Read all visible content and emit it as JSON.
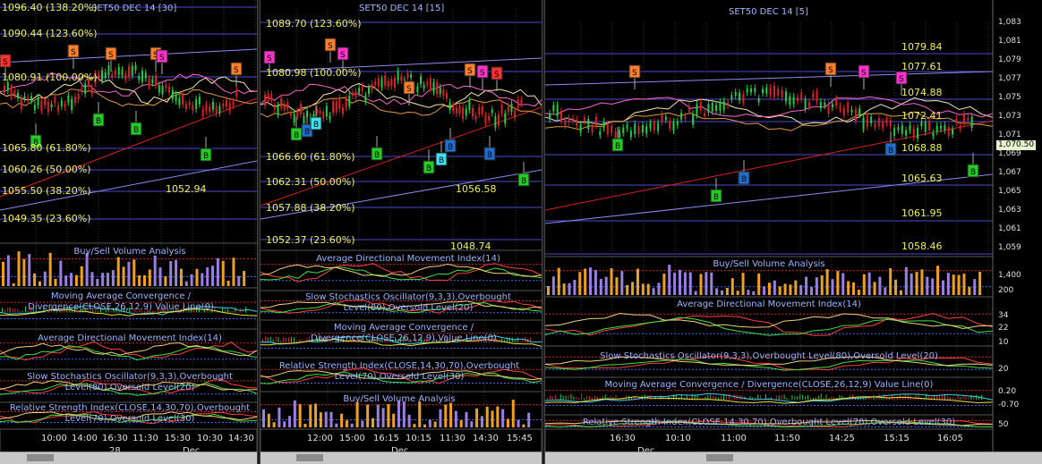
{
  "colors": {
    "bg": "#000000",
    "fib": "#f2f24a",
    "title": "#9fb7ff",
    "up_candle": "#22cc44",
    "down_candle": "#dd2020",
    "buy_marker": "#22cc22",
    "sell_marker": "#ff7f2a",
    "magenta_marker": "#ff33cc",
    "blue_marker": "#1f6fd0"
  },
  "pane1": {
    "title": "SET50 DEC 14   [30]",
    "fib_labels": [
      "1096.40 (138.20%)",
      "1090.44 (123.60%)",
      "1080.91 (100.00%)",
      "1065.80 (61.80%)",
      "1060.26 (50.00%)",
      "1055.50 (38.20%)",
      "1049.35 (23.60%)"
    ],
    "low_label": "1052.94",
    "indicators": [
      "Buy/Sell Volume Analysis",
      "Moving Average Convergence / Divergence(CLOSE,26,12,9) Value Line(0)",
      "Average Directional Movement Index(14)",
      "Slow Stochastics Oscillator(9,3,3),Overbought Level(80),Oversold Level(20)",
      "Relative Strength Index(CLOSE,14,30,70),Overbought Level(70),Oversold Level(30)"
    ],
    "time_ticks": [
      "10:00",
      "14:00",
      "16:30",
      "11:30",
      "15:30",
      "10:30",
      "14:30"
    ],
    "date_ticks": [
      "28",
      "Dec"
    ]
  },
  "pane2": {
    "title": "SET50 DEC 14   [15]",
    "fib_labels": [
      "1089.70 (123.60%)",
      "1080.98 (100.00%)",
      "1066.60 (61.80%)",
      "1062.31 (50.00%)",
      "1057.88 (38.20%)",
      "1052.37 (23.60%)"
    ],
    "low_label": "1048.74",
    "overlap_label": "1056.58",
    "indicators": [
      "Average Directional Movement Index(14)",
      "Slow Stochastics Oscillator(9,3,3),Overbought Level(80),Oversold Level(20)",
      "Moving Average Convergence / Divergence(CLOSE,26,12,9),Value Line(0)",
      "Relative Strength Index(CLOSE,14,30,70),Overbought Level(70),Oversold Level(30)",
      "Buy/Sell Volume Analysis"
    ],
    "time_ticks": [
      "12:00",
      "15:00",
      "16:15",
      "10:15",
      "11:30",
      "14:30",
      "15:45"
    ],
    "date_ticks": [
      "Dec"
    ]
  },
  "pane3": {
    "title": "SET50 DEC 14   [5]",
    "price_labels": [
      "1079.84",
      "1077.61",
      "1074.88",
      "1072.41",
      "1068.88",
      "1065.63",
      "1061.95",
      "1058.46"
    ],
    "last_price": "1,070.50",
    "y_ticks": [
      "1,083",
      "1,081",
      "1,079",
      "1,077",
      "1,075",
      "1,073",
      "1,071",
      "1,069",
      "1,067",
      "1,065",
      "1,063",
      "1,061",
      "1,059"
    ],
    "indicators": [
      "Buy/Sell Volume Analysis",
      "Average Directional Movement Index(14)",
      "Slow Stochastics Oscillator(9,3,3),Overbought Level(80),Oversold Level(20)",
      "Moving Average Convergence / Divergence(CLOSE,26,12,9) Value Line(0)",
      "Relative Strength Index(CLOSE,14,30,70),Overbought Level(70),Oversold Level(30)"
    ],
    "ind_ticks": {
      "volume": [
        "1,400",
        "200"
      ],
      "adx": [
        "34",
        "22",
        "10"
      ],
      "stoch": [
        "20"
      ],
      "macd": [
        "0.20",
        "-0.70"
      ],
      "rsi": [
        "50"
      ]
    },
    "time_ticks": [
      "16:30",
      "10:10",
      "11:00",
      "11:50",
      "14:25",
      "15:15",
      "16:05"
    ],
    "date_ticks": [
      "Dec"
    ]
  },
  "markers": {
    "sell": "S",
    "buy": "B"
  }
}
